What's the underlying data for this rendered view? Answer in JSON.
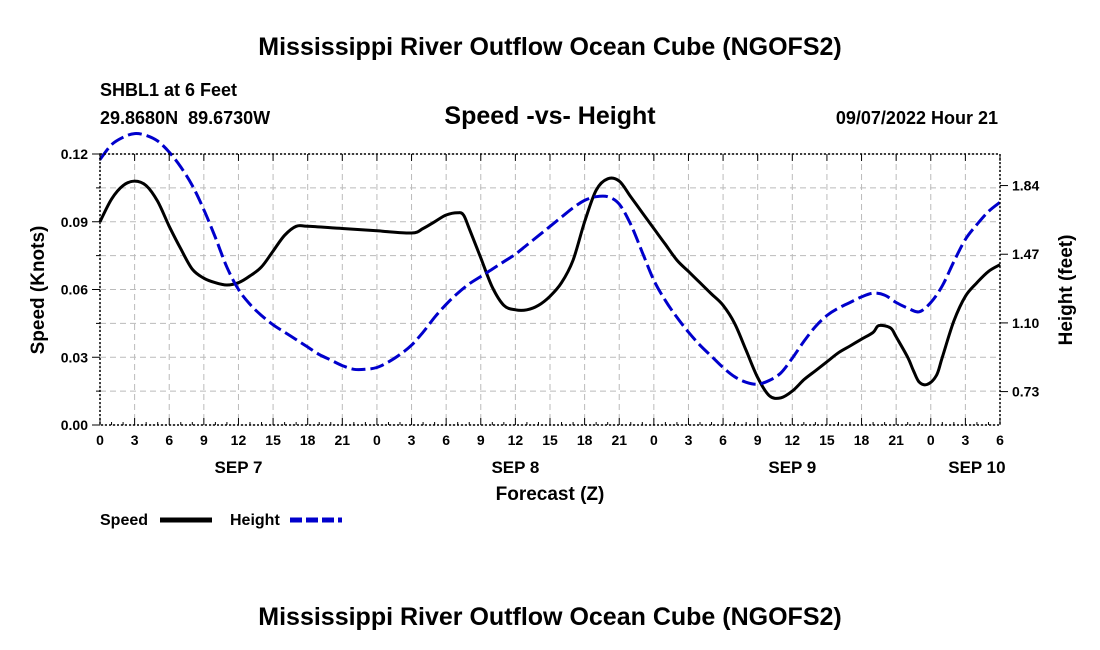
{
  "chart_data": {
    "type": "line",
    "title": "Mississippi River Outflow Ocean Cube (NGOFS2)",
    "title_repeat": "Mississippi River Outflow Ocean Cube (NGOFS2)",
    "subtitle": "Speed -vs- Height",
    "station": "SHBL1 at 6 Feet",
    "coords": "29.8680N  89.6730W",
    "datetime": "09/07/2022 Hour 21",
    "xlabel": "Forecast (Z)",
    "ylabel": "Speed (Knots)",
    "ylabel_right": "Height (feet)",
    "x_range_hours": [
      0,
      78
    ],
    "ylim": [
      0,
      0.12
    ],
    "y2lim": [
      0.55,
      2.01
    ],
    "y_ticks": [
      "0.00",
      "0.03",
      "0.06",
      "0.09",
      "0.12"
    ],
    "y2_ticks": [
      "0.73",
      "1.10",
      "1.47",
      "1.84"
    ],
    "y2_tick_values": [
      0.73,
      1.1,
      1.47,
      1.84
    ],
    "x_ticks": [
      "0",
      "3",
      "6",
      "9",
      "12",
      "15",
      "18",
      "21",
      "0",
      "3",
      "6",
      "9",
      "12",
      "15",
      "18",
      "21",
      "0",
      "3",
      "6",
      "9",
      "12",
      "15",
      "18",
      "21",
      "0",
      "3",
      "6"
    ],
    "day_labels": [
      {
        "label": "SEP 7",
        "hour": 12
      },
      {
        "label": "SEP 8",
        "hour": 36
      },
      {
        "label": "SEP 9",
        "hour": 60
      },
      {
        "label": "SEP 10",
        "hour": 76
      }
    ],
    "series": [
      {
        "name": "Speed",
        "color": "#000000",
        "axis": "left",
        "points": [
          [
            0,
            0.09
          ],
          [
            1,
            0.1
          ],
          [
            2,
            0.106
          ],
          [
            3,
            0.108
          ],
          [
            4,
            0.106
          ],
          [
            5,
            0.099
          ],
          [
            6,
            0.088
          ],
          [
            7,
            0.078
          ],
          [
            8,
            0.069
          ],
          [
            9,
            0.065
          ],
          [
            10,
            0.063
          ],
          [
            11,
            0.062
          ],
          [
            12,
            0.063
          ],
          [
            13,
            0.066
          ],
          [
            14,
            0.07
          ],
          [
            15,
            0.077
          ],
          [
            16,
            0.084
          ],
          [
            17,
            0.088
          ],
          [
            18,
            0.088
          ],
          [
            21,
            0.087
          ],
          [
            24,
            0.086
          ],
          [
            27,
            0.085
          ],
          [
            28,
            0.087
          ],
          [
            29,
            0.09
          ],
          [
            30,
            0.093
          ],
          [
            31,
            0.094
          ],
          [
            31.5,
            0.093
          ],
          [
            32,
            0.087
          ],
          [
            33,
            0.074
          ],
          [
            34,
            0.061
          ],
          [
            35,
            0.053
          ],
          [
            36,
            0.051
          ],
          [
            37,
            0.051
          ],
          [
            38,
            0.053
          ],
          [
            39,
            0.057
          ],
          [
            40,
            0.063
          ],
          [
            41,
            0.073
          ],
          [
            42,
            0.09
          ],
          [
            43,
            0.104
          ],
          [
            44,
            0.109
          ],
          [
            45,
            0.108
          ],
          [
            46,
            0.101
          ],
          [
            47,
            0.094
          ],
          [
            48,
            0.087
          ],
          [
            49,
            0.08
          ],
          [
            50,
            0.073
          ],
          [
            51,
            0.068
          ],
          [
            52,
            0.063
          ],
          [
            53,
            0.058
          ],
          [
            54,
            0.053
          ],
          [
            55,
            0.045
          ],
          [
            56,
            0.033
          ],
          [
            57,
            0.021
          ],
          [
            58,
            0.013
          ],
          [
            59,
            0.012
          ],
          [
            60,
            0.015
          ],
          [
            61,
            0.02
          ],
          [
            62,
            0.024
          ],
          [
            63,
            0.028
          ],
          [
            64,
            0.032
          ],
          [
            65,
            0.035
          ],
          [
            66,
            0.038
          ],
          [
            67,
            0.041
          ],
          [
            67.5,
            0.044
          ],
          [
            68.5,
            0.043
          ],
          [
            69,
            0.039
          ],
          [
            70,
            0.03
          ],
          [
            70.5,
            0.024
          ],
          [
            71,
            0.019
          ],
          [
            71.7,
            0.018
          ],
          [
            72.5,
            0.022
          ],
          [
            73,
            0.03
          ],
          [
            74,
            0.046
          ],
          [
            75,
            0.057
          ],
          [
            76,
            0.063
          ],
          [
            77,
            0.068
          ],
          [
            78,
            0.071
          ]
        ]
      },
      {
        "name": "Height",
        "color": "#0000cc",
        "axis": "right",
        "points": [
          [
            0,
            1.98
          ],
          [
            1,
            2.06
          ],
          [
            2,
            2.1
          ],
          [
            3,
            2.12
          ],
          [
            4,
            2.11
          ],
          [
            5,
            2.08
          ],
          [
            6,
            2.02
          ],
          [
            7,
            1.94
          ],
          [
            8,
            1.84
          ],
          [
            9,
            1.71
          ],
          [
            10,
            1.56
          ],
          [
            11,
            1.4
          ],
          [
            12,
            1.28
          ],
          [
            13,
            1.2
          ],
          [
            14,
            1.14
          ],
          [
            15,
            1.09
          ],
          [
            16,
            1.05
          ],
          [
            17,
            1.01
          ],
          [
            18,
            0.97
          ],
          [
            19,
            0.93
          ],
          [
            20,
            0.9
          ],
          [
            21,
            0.87
          ],
          [
            22,
            0.85
          ],
          [
            23,
            0.85
          ],
          [
            24,
            0.86
          ],
          [
            25,
            0.89
          ],
          [
            26,
            0.93
          ],
          [
            27,
            0.98
          ],
          [
            28,
            1.05
          ],
          [
            29,
            1.13
          ],
          [
            30,
            1.2
          ],
          [
            31,
            1.26
          ],
          [
            32,
            1.31
          ],
          [
            33,
            1.35
          ],
          [
            34,
            1.39
          ],
          [
            35,
            1.43
          ],
          [
            36,
            1.47
          ],
          [
            37,
            1.52
          ],
          [
            38,
            1.57
          ],
          [
            39,
            1.62
          ],
          [
            40,
            1.67
          ],
          [
            41,
            1.72
          ],
          [
            42,
            1.76
          ],
          [
            43,
            1.78
          ],
          [
            44,
            1.78
          ],
          [
            45,
            1.74
          ],
          [
            46,
            1.63
          ],
          [
            47,
            1.48
          ],
          [
            48,
            1.33
          ],
          [
            49,
            1.22
          ],
          [
            50,
            1.13
          ],
          [
            51,
            1.05
          ],
          [
            52,
            0.98
          ],
          [
            53,
            0.92
          ],
          [
            54,
            0.86
          ],
          [
            55,
            0.81
          ],
          [
            56,
            0.78
          ],
          [
            57,
            0.77
          ],
          [
            58,
            0.79
          ],
          [
            59,
            0.83
          ],
          [
            60,
            0.91
          ],
          [
            61,
            1.0
          ],
          [
            62,
            1.08
          ],
          [
            63,
            1.14
          ],
          [
            64,
            1.18
          ],
          [
            65,
            1.21
          ],
          [
            66,
            1.24
          ],
          [
            67,
            1.26
          ],
          [
            68,
            1.25
          ],
          [
            69,
            1.21
          ],
          [
            70,
            1.18
          ],
          [
            71,
            1.16
          ],
          [
            72,
            1.21
          ],
          [
            73,
            1.3
          ],
          [
            74,
            1.43
          ],
          [
            75,
            1.55
          ],
          [
            76,
            1.63
          ],
          [
            77,
            1.7
          ],
          [
            78,
            1.75
          ]
        ]
      }
    ],
    "legend": [
      "Speed",
      "Height"
    ],
    "grid": true
  }
}
